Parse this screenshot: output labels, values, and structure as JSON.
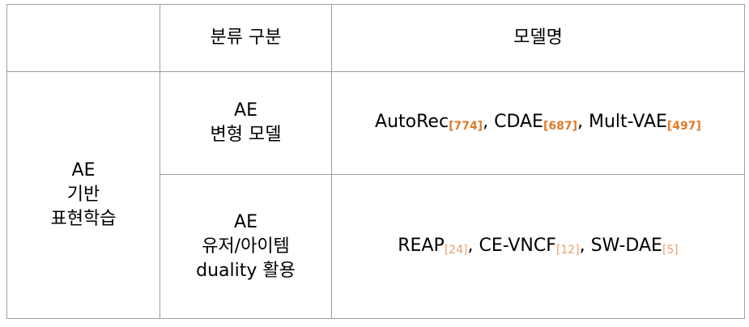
{
  "header": {
    "empty": "",
    "category": "분류 구분",
    "models": "모델명"
  },
  "group": {
    "label_lines": [
      "AE",
      "기반",
      "표현학습"
    ]
  },
  "rows": [
    {
      "category_lines": [
        "AE",
        "변형 모델"
      ],
      "models": [
        {
          "name": "AutoRec",
          "ref": "[774]",
          "sep": ", "
        },
        {
          "name": "CDAE",
          "ref": "[687]",
          "sep": ", "
        },
        {
          "name": "Mult-VAE",
          "ref": "[497]",
          "sep": ""
        }
      ]
    },
    {
      "category_lines": [
        "AE",
        "유저/아이템",
        "duality 활용"
      ],
      "models": [
        {
          "name": "REAP",
          "ref": "[24]",
          "sep": ", "
        },
        {
          "name": "CE-VNCF",
          "ref": "[12]",
          "sep": ", "
        },
        {
          "name": "SW-DAE",
          "ref": "[5]",
          "sep": ""
        }
      ]
    }
  ],
  "colors": {
    "border": "#9e9e9e",
    "ref_row1": "#e07b2a",
    "ref_row2": "#e8a06a"
  }
}
